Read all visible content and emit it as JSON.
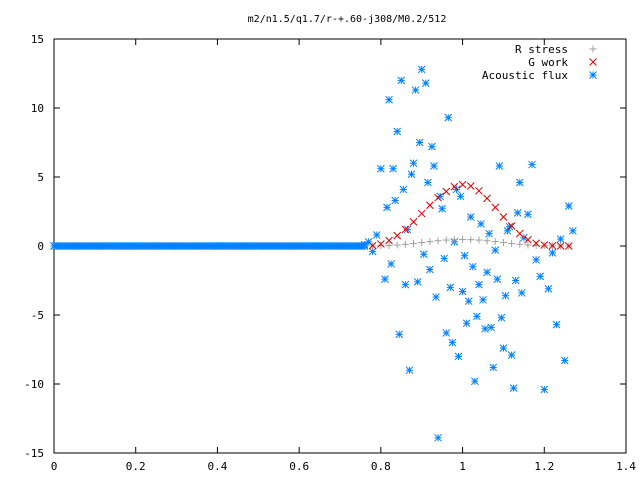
{
  "chart_data": {
    "type": "scatter",
    "title": "m2/n1.5/q1.7/r-+.60-j308/M0.2/512",
    "xlabel": "",
    "ylabel": "",
    "xlim": [
      0,
      1.4
    ],
    "ylim": [
      -15,
      15
    ],
    "x_ticks": [
      "0",
      "0.2",
      "0.4",
      "0.6",
      "0.8",
      "1",
      "1.2",
      "1.4"
    ],
    "y_ticks": [
      "15",
      "10",
      "5",
      "0",
      "-5",
      "-10",
      "-15"
    ],
    "grid": false,
    "legend_position": "top-right",
    "series": [
      {
        "name": "R stress",
        "marker": "plus",
        "color": "#a0a0a0",
        "x": [
          0.78,
          0.8,
          0.82,
          0.84,
          0.86,
          0.88,
          0.9,
          0.92,
          0.94,
          0.96,
          0.98,
          1.0,
          1.02,
          1.04,
          1.06,
          1.08,
          1.1,
          1.12,
          1.14,
          1.16,
          1.18,
          1.2,
          1.22,
          1.24,
          1.26
        ],
        "y": [
          0.0,
          0.02,
          0.04,
          0.07,
          0.12,
          0.18,
          0.25,
          0.32,
          0.38,
          0.43,
          0.46,
          0.47,
          0.46,
          0.43,
          0.38,
          0.32,
          0.25,
          0.18,
          0.12,
          0.07,
          0.04,
          0.02,
          0.01,
          0.0,
          0.0
        ]
      },
      {
        "name": "G work",
        "marker": "cross",
        "color": "#e00000",
        "x": [
          0.78,
          0.8,
          0.82,
          0.84,
          0.86,
          0.88,
          0.9,
          0.92,
          0.94,
          0.96,
          0.98,
          1.0,
          1.02,
          1.04,
          1.06,
          1.08,
          1.1,
          1.12,
          1.14,
          1.16,
          1.18,
          1.2,
          1.22,
          1.24,
          1.26
        ],
        "y": [
          0.03,
          0.15,
          0.4,
          0.75,
          1.2,
          1.75,
          2.35,
          2.95,
          3.5,
          3.95,
          4.3,
          4.45,
          4.35,
          4.0,
          3.45,
          2.8,
          2.1,
          1.45,
          0.9,
          0.45,
          0.2,
          0.07,
          0.02,
          0.0,
          0.0
        ]
      },
      {
        "name": "Acoustic flux",
        "marker": "star",
        "color": "#0080ff",
        "x": [
          0.0,
          0.05,
          0.1,
          0.15,
          0.2,
          0.25,
          0.3,
          0.35,
          0.4,
          0.45,
          0.5,
          0.55,
          0.6,
          0.65,
          0.7,
          0.75,
          0.76,
          0.77,
          0.78,
          0.79,
          0.8,
          0.81,
          0.815,
          0.82,
          0.825,
          0.83,
          0.835,
          0.84,
          0.845,
          0.85,
          0.855,
          0.86,
          0.865,
          0.87,
          0.875,
          0.88,
          0.885,
          0.89,
          0.895,
          0.9,
          0.905,
          0.91,
          0.915,
          0.92,
          0.925,
          0.93,
          0.935,
          0.94,
          0.945,
          0.95,
          0.955,
          0.96,
          0.965,
          0.97,
          0.975,
          0.98,
          0.985,
          0.99,
          0.995,
          1.0,
          1.005,
          1.01,
          1.015,
          1.02,
          1.025,
          1.03,
          1.035,
          1.04,
          1.045,
          1.05,
          1.055,
          1.06,
          1.065,
          1.07,
          1.075,
          1.08,
          1.085,
          1.09,
          1.095,
          1.1,
          1.105,
          1.11,
          1.115,
          1.12,
          1.125,
          1.13,
          1.135,
          1.14,
          1.145,
          1.15,
          1.16,
          1.17,
          1.18,
          1.19,
          1.2,
          1.21,
          1.22,
          1.23,
          1.24,
          1.25,
          1.26,
          1.27
        ],
        "y": [
          0,
          0,
          0,
          0,
          0,
          0,
          0,
          0,
          0,
          0,
          0,
          0,
          0,
          0,
          0,
          0,
          0.1,
          0.3,
          -0.4,
          0.8,
          5.6,
          -2.4,
          2.8,
          10.6,
          -1.3,
          5.6,
          3.3,
          8.3,
          -6.4,
          12.0,
          4.1,
          -2.8,
          1.2,
          -9.0,
          5.2,
          6.0,
          11.3,
          -2.6,
          7.5,
          12.8,
          -0.6,
          11.8,
          4.6,
          -1.7,
          7.2,
          5.8,
          -3.7,
          -13.9,
          3.6,
          2.7,
          -0.9,
          -6.3,
          9.3,
          -3.0,
          -7.0,
          0.3,
          4.1,
          -8.0,
          3.6,
          -3.3,
          -0.7,
          -5.6,
          -4.0,
          2.1,
          -1.5,
          -9.8,
          -5.1,
          -2.8,
          1.6,
          -3.9,
          -6.0,
          -1.9,
          0.9,
          -5.9,
          -8.8,
          -0.3,
          -2.4,
          5.8,
          -5.2,
          -7.4,
          -3.6,
          1.1,
          1.4,
          -7.9,
          -10.3,
          -2.5,
          2.4,
          4.6,
          -3.4,
          0.6,
          2.3,
          5.9,
          -1.0,
          -2.2,
          -10.4,
          -3.1,
          -0.5,
          -5.7,
          0.5,
          -8.3,
          2.9,
          1.1
        ]
      }
    ]
  }
}
